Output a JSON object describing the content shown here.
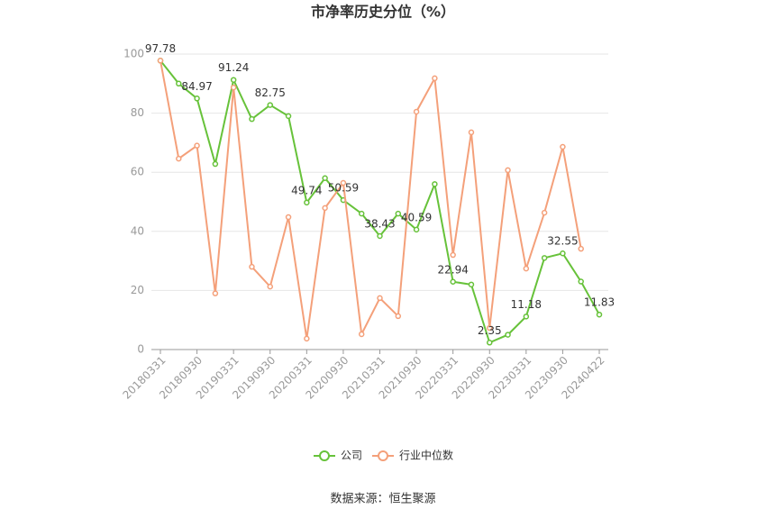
{
  "chart_data": {
    "type": "line",
    "title": "市净率历史分位（%）",
    "source": "数据来源：恒生聚源",
    "categories": [
      "20180331",
      null,
      "20180930",
      null,
      "20190331",
      null,
      "20190930",
      null,
      "20200331",
      null,
      "20200930",
      null,
      "20210331",
      null,
      "20210930",
      null,
      "20220331",
      null,
      "20220930",
      null,
      "20230331",
      null,
      "20230930",
      null,
      "20240422"
    ],
    "series": [
      {
        "name": "公司",
        "color": "#67c23a",
        "values": [
          97.78,
          90,
          84.97,
          62.8,
          91.24,
          78,
          82.75,
          79,
          49.74,
          58,
          50.59,
          46,
          38.43,
          46,
          40.59,
          56,
          22.94,
          22,
          2.35,
          5,
          11.18,
          31,
          32.55,
          23,
          11.83
        ],
        "value_labels": [
          "97.78",
          null,
          "84.97",
          null,
          "91.24",
          null,
          "82.75",
          null,
          "49.74",
          null,
          "50.59",
          null,
          "38.43",
          null,
          "40.59",
          null,
          "22.94",
          null,
          "2.35",
          null,
          "11.18",
          null,
          "32.55",
          null,
          "11.83"
        ]
      },
      {
        "name": "行业中位数",
        "color": "#f4a07a",
        "values": [
          97.78,
          64.6,
          69,
          19,
          88.7,
          28,
          21.3,
          44.8,
          3.7,
          47.9,
          56.4,
          5.2,
          17.4,
          11.3,
          80.5,
          91.8,
          32,
          73.5,
          7.3,
          60.7,
          27.4,
          46.3,
          68.6,
          34.1,
          null
        ]
      }
    ],
    "ylim": [
      0,
      100
    ],
    "yticks": [
      0,
      20,
      40,
      60,
      80,
      100
    ],
    "grid": true
  }
}
